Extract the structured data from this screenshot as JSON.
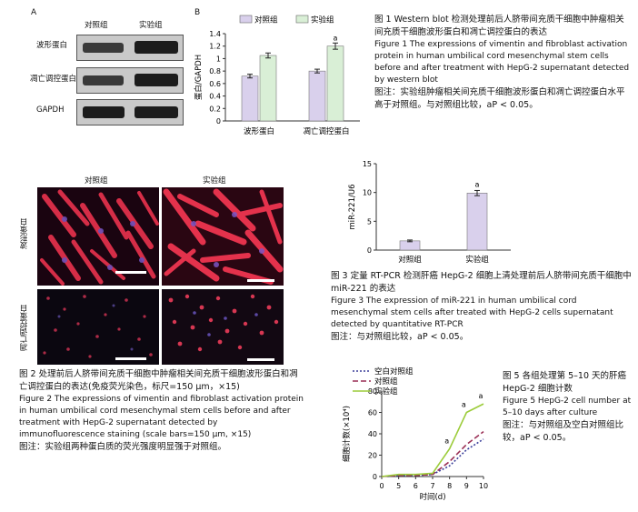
{
  "fig1": {
    "panel_a_letter": "A",
    "panel_b_letter": "B",
    "blot_col_labels": [
      "对照组",
      "实验组"
    ],
    "blot_row_labels": [
      "波形蛋白",
      "凋亡调控蛋白",
      "GAPDH"
    ],
    "caption_title_cn": "图 1   Western blot 检测处理前后人脐带间充质干细胞中肿瘤相关间充质干细胞波形蛋白和凋亡调控蛋白的表达",
    "caption_title_en": "Figure 1    The expressions of vimentin and fibroblast activation protein in human umbilical cord mesenchymal stem cells before and after treatment with HepG-2 supernatant detected by western blot",
    "caption_note": "图注：实验组肿瘤相关间充质干细胞波形蛋白和凋亡调控蛋白水平高于对照组。与对照组比较，aP < 0.05。"
  },
  "fig2": {
    "col_labels": [
      "对照组",
      "实验组"
    ],
    "row_labels": [
      "波形蛋白",
      "凋亡调控蛋白"
    ],
    "caption_title_cn": "图 2   处理前后人脐带间充质干细胞中肿瘤相关间充质干细胞波形蛋白和凋亡调控蛋白的表达(免疫荧光染色，标尺=150 μm，×15)",
    "caption_title_en": "Figure 2    The expressions of vimentin and fibroblast activation protein in human umbilical cord mesenchymal stem cells before and after treatment with HepG-2 supernatant detected by immunofluorescence staining (scale bars=150 μm, ×15)",
    "caption_note": "图注：实验组两种蛋白质的荧光强度明显强于对照组。"
  },
  "fig3": {
    "caption_title_cn": "图 3   定量 RT-PCR 检测肝癌 HepG-2 细胞上清处理前后人脐带间充质干细胞中 miR-221 的表达",
    "caption_title_en": "Figure 3    The expression of miR-221 in human umbilical cord mesenchymal stem cells after treated with HepG-2 cells supernatant detected by quantitative RT-PCR",
    "caption_note": "图注：与对照组比较，aP < 0.05。"
  },
  "fig5": {
    "caption_title_cn": "图 5   各组处理第 5–10 天的肝癌 HepG-2 细胞计数",
    "caption_title_en": "Figure 5    HepG-2 cell number at 5–10 days after culture",
    "caption_note": "图注：与对照组及空白对照组比较，aP < 0.05。"
  },
  "chart_data": [
    {
      "id": "fig1b",
      "type": "bar",
      "categories": [
        "波形蛋白",
        "凋亡调控蛋白"
      ],
      "series": [
        {
          "name": "对照组",
          "values": [
            0.72,
            0.8
          ],
          "errors": [
            0.03,
            0.03
          ],
          "color": "#d9d0ec"
        },
        {
          "name": "实验组",
          "values": [
            1.05,
            1.2
          ],
          "errors": [
            0.04,
            0.05
          ],
          "color": "#d9efd6"
        }
      ],
      "annotations": [
        {
          "category": 1,
          "series": 1,
          "text": "a"
        }
      ],
      "ylabel": "蛋白/GAPDH",
      "ylim": [
        0,
        1.4
      ],
      "yticks": [
        0,
        0.2,
        0.4,
        0.6,
        0.8,
        1.0,
        1.2,
        1.4
      ],
      "ytick_labels": [
        "0",
        "0.2",
        "0.4",
        "0.6",
        "0.8",
        "1",
        "1.2",
        "1.4"
      ],
      "legend": "top"
    },
    {
      "id": "fig3",
      "type": "bar",
      "categories": [
        "对照组",
        "实验组"
      ],
      "values": [
        1.6,
        9.9
      ],
      "errors": [
        0.15,
        0.45
      ],
      "color": "#d9d0ec",
      "annotations": [
        {
          "category": 1,
          "text": "a"
        }
      ],
      "ylabel": "miR-221/U6",
      "ylim": [
        0,
        15
      ],
      "yticks": [
        0,
        5,
        10,
        15
      ],
      "ytick_labels": [
        "0",
        "5",
        "10",
        "15"
      ]
    },
    {
      "id": "fig5",
      "type": "line",
      "x": [
        0,
        5,
        6,
        7,
        8,
        9,
        10
      ],
      "series": [
        {
          "name": "空白对照组",
          "values": [
            0,
            1,
            1,
            2,
            10,
            25,
            35
          ],
          "color": "#3b3f9a",
          "dash": "2,2"
        },
        {
          "name": "对照组",
          "values": [
            0,
            1,
            1,
            2,
            14,
            30,
            42
          ],
          "color": "#9a2f55",
          "dash": "6,3"
        },
        {
          "name": "实验组",
          "values": [
            0,
            2,
            2,
            3,
            26,
            60,
            68
          ],
          "color": "#9ccc3a",
          "dash": ""
        }
      ],
      "annotations": [
        {
          "x": 8,
          "y": 26,
          "text": "a"
        },
        {
          "x": 9,
          "y": 60,
          "text": "a"
        },
        {
          "x": 10,
          "y": 68,
          "text": "a"
        }
      ],
      "ylabel": "细胞计数(×10⁴)",
      "xlabel": "时间(d)",
      "ylim": [
        0,
        80
      ],
      "yticks": [
        0,
        20,
        40,
        60,
        80
      ],
      "xticks": [
        0,
        5,
        6,
        7,
        8,
        9,
        10
      ],
      "legend": "top-left"
    }
  ]
}
